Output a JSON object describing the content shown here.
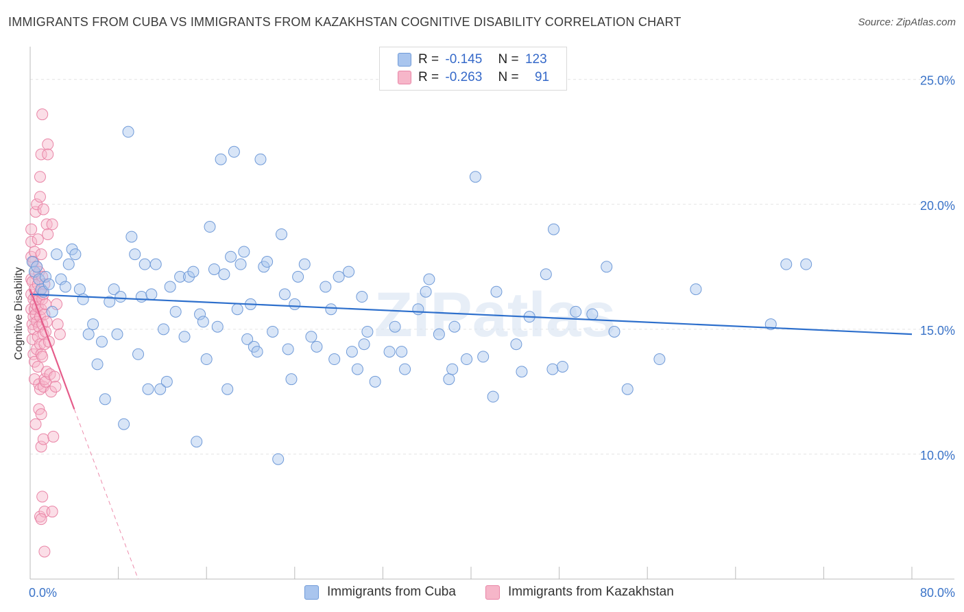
{
  "title": "IMMIGRANTS FROM CUBA VS IMMIGRANTS FROM KAZAKHSTAN COGNITIVE DISABILITY CORRELATION CHART",
  "source": "Source: ZipAtlas.com",
  "watermark": "ZIPatlas",
  "colors": {
    "cuba_fill": "#a9c5ee",
    "cuba_stroke": "#6f9ad8",
    "cuba_line": "#2d6fcc",
    "kaz_fill": "#f6b6c9",
    "kaz_stroke": "#e984a6",
    "kaz_line": "#e55c8a",
    "axis_text": "#3a73c8",
    "grid": "#e3e3e3"
  },
  "legend_top": {
    "rows": [
      {
        "r_label": "R =",
        "r_value": "-0.145",
        "n_label": "N =",
        "n_value": "123"
      },
      {
        "r_label": "R =",
        "r_value": "-0.263",
        "n_label": "N =",
        "n_value": "91"
      }
    ]
  },
  "legend_bottom": {
    "cuba": "Immigrants from Cuba",
    "kazakhstan": "Immigrants from Kazakhstan"
  },
  "chart_data": {
    "type": "scatter",
    "title": "IMMIGRANTS FROM CUBA VS IMMIGRANTS FROM KAZAKHSTAN COGNITIVE DISABILITY CORRELATION CHART",
    "xlabel": "",
    "ylabel": "Cognitive Disability",
    "xlim": [
      0,
      80
    ],
    "ylim": [
      5.0,
      26.2
    ],
    "x_tick_labels": [
      "0.0%",
      "80.0%"
    ],
    "y_ticks": [
      10,
      15,
      20,
      25
    ],
    "y_tick_labels": [
      "10.0%",
      "15.0%",
      "20.0%",
      "25.0%"
    ],
    "grid": true,
    "legend_position": "top-center",
    "series": [
      {
        "name": "Immigrants from Cuba",
        "r": -0.145,
        "n": 123,
        "trend": {
          "x0": 0,
          "y0": 16.4,
          "x1": 80,
          "y1": 14.8
        },
        "points": [
          [
            0.2,
            17.7
          ],
          [
            0.4,
            17.3
          ],
          [
            0.6,
            17.5
          ],
          [
            0.8,
            17.0
          ],
          [
            1.0,
            16.6
          ],
          [
            1.2,
            16.5
          ],
          [
            1.4,
            17.1
          ],
          [
            1.7,
            16.8
          ],
          [
            2.0,
            15.7
          ],
          [
            2.4,
            18.0
          ],
          [
            2.8,
            17.0
          ],
          [
            3.2,
            16.7
          ],
          [
            3.5,
            17.6
          ],
          [
            3.8,
            18.2
          ],
          [
            4.1,
            18.0
          ],
          [
            4.5,
            16.6
          ],
          [
            4.8,
            16.2
          ],
          [
            5.3,
            14.8
          ],
          [
            5.7,
            15.2
          ],
          [
            6.1,
            13.6
          ],
          [
            6.5,
            14.5
          ],
          [
            6.8,
            12.2
          ],
          [
            7.2,
            16.1
          ],
          [
            7.6,
            16.6
          ],
          [
            7.9,
            14.8
          ],
          [
            8.2,
            16.3
          ],
          [
            8.5,
            11.2
          ],
          [
            8.9,
            22.9
          ],
          [
            9.2,
            18.7
          ],
          [
            9.5,
            18.0
          ],
          [
            9.8,
            14.0
          ],
          [
            10.1,
            16.3
          ],
          [
            10.4,
            17.6
          ],
          [
            10.7,
            12.6
          ],
          [
            11.0,
            16.4
          ],
          [
            11.4,
            17.6
          ],
          [
            11.8,
            12.6
          ],
          [
            12.1,
            15.0
          ],
          [
            12.4,
            12.9
          ],
          [
            12.7,
            16.7
          ],
          [
            13.2,
            15.7
          ],
          [
            13.6,
            17.1
          ],
          [
            14.0,
            14.7
          ],
          [
            14.4,
            17.1
          ],
          [
            14.8,
            17.3
          ],
          [
            15.1,
            10.5
          ],
          [
            15.4,
            15.6
          ],
          [
            15.7,
            15.3
          ],
          [
            16.0,
            13.8
          ],
          [
            16.3,
            19.1
          ],
          [
            16.7,
            17.4
          ],
          [
            17.0,
            15.1
          ],
          [
            17.3,
            21.8
          ],
          [
            17.6,
            17.2
          ],
          [
            17.9,
            12.6
          ],
          [
            18.2,
            17.9
          ],
          [
            18.5,
            22.1
          ],
          [
            18.8,
            15.8
          ],
          [
            19.1,
            17.6
          ],
          [
            19.4,
            18.1
          ],
          [
            19.7,
            14.6
          ],
          [
            20.0,
            16.0
          ],
          [
            20.3,
            14.3
          ],
          [
            20.6,
            14.1
          ],
          [
            20.9,
            21.8
          ],
          [
            21.2,
            17.5
          ],
          [
            21.5,
            17.7
          ],
          [
            22.0,
            14.9
          ],
          [
            22.5,
            9.8
          ],
          [
            22.8,
            18.8
          ],
          [
            23.1,
            16.4
          ],
          [
            23.4,
            14.2
          ],
          [
            23.7,
            13.0
          ],
          [
            24.0,
            16.0
          ],
          [
            24.3,
            17.1
          ],
          [
            24.9,
            17.6
          ],
          [
            25.5,
            14.7
          ],
          [
            26.0,
            14.3
          ],
          [
            26.8,
            16.7
          ],
          [
            27.3,
            15.8
          ],
          [
            27.6,
            13.8
          ],
          [
            28.0,
            17.1
          ],
          [
            28.9,
            17.3
          ],
          [
            29.2,
            14.1
          ],
          [
            29.7,
            13.4
          ],
          [
            30.1,
            16.3
          ],
          [
            30.3,
            14.4
          ],
          [
            30.6,
            14.9
          ],
          [
            31.3,
            12.9
          ],
          [
            32.6,
            14.1
          ],
          [
            33.1,
            15.1
          ],
          [
            33.7,
            14.1
          ],
          [
            34.0,
            13.4
          ],
          [
            35.2,
            15.8
          ],
          [
            35.9,
            16.5
          ],
          [
            36.2,
            17.0
          ],
          [
            37.1,
            14.8
          ],
          [
            38.0,
            13.0
          ],
          [
            38.3,
            13.4
          ],
          [
            38.5,
            15.1
          ],
          [
            39.6,
            13.8
          ],
          [
            40.4,
            21.1
          ],
          [
            41.1,
            13.9
          ],
          [
            42.0,
            12.3
          ],
          [
            42.3,
            16.5
          ],
          [
            44.1,
            14.4
          ],
          [
            44.6,
            13.3
          ],
          [
            45.3,
            15.5
          ],
          [
            46.8,
            17.2
          ],
          [
            47.4,
            13.4
          ],
          [
            47.5,
            19.0
          ],
          [
            48.3,
            13.5
          ],
          [
            49.5,
            15.7
          ],
          [
            51.0,
            15.6
          ],
          [
            52.3,
            17.5
          ],
          [
            53.0,
            14.9
          ],
          [
            54.2,
            12.6
          ],
          [
            57.1,
            13.8
          ],
          [
            60.4,
            16.6
          ],
          [
            67.2,
            15.2
          ],
          [
            68.6,
            17.6
          ],
          [
            70.4,
            17.6
          ]
        ]
      },
      {
        "name": "Immigrants from Kazakhstan",
        "r": -0.263,
        "n": 91,
        "trend": {
          "x0": 0,
          "y0": 16.6,
          "x1": 4.0,
          "y1": 11.8
        },
        "trend_dashed": {
          "x0": 4.0,
          "y0": 11.8,
          "x1": 9.8,
          "y1": 5.0
        },
        "points": [
          [
            0.1,
            19.0
          ],
          [
            0.1,
            18.5
          ],
          [
            0.1,
            17.9
          ],
          [
            0.1,
            17.0
          ],
          [
            0.1,
            16.4
          ],
          [
            0.1,
            15.8
          ],
          [
            0.2,
            16.9
          ],
          [
            0.2,
            15.2
          ],
          [
            0.2,
            14.6
          ],
          [
            0.3,
            17.7
          ],
          [
            0.3,
            16.2
          ],
          [
            0.3,
            15.5
          ],
          [
            0.3,
            15.0
          ],
          [
            0.3,
            14.0
          ],
          [
            0.4,
            18.1
          ],
          [
            0.4,
            16.6
          ],
          [
            0.4,
            15.8
          ],
          [
            0.4,
            13.7
          ],
          [
            0.4,
            13.0
          ],
          [
            0.5,
            19.7
          ],
          [
            0.5,
            17.2
          ],
          [
            0.5,
            16.0
          ],
          [
            0.5,
            15.6
          ],
          [
            0.5,
            11.2
          ],
          [
            0.6,
            20.0
          ],
          [
            0.6,
            17.5
          ],
          [
            0.6,
            16.3
          ],
          [
            0.6,
            15.3
          ],
          [
            0.6,
            14.2
          ],
          [
            0.7,
            18.6
          ],
          [
            0.7,
            16.8
          ],
          [
            0.7,
            15.9
          ],
          [
            0.7,
            14.7
          ],
          [
            0.7,
            13.5
          ],
          [
            0.8,
            17.3
          ],
          [
            0.8,
            16.2
          ],
          [
            0.8,
            15.1
          ],
          [
            0.8,
            12.8
          ],
          [
            0.8,
            11.8
          ],
          [
            0.9,
            21.1
          ],
          [
            0.9,
            20.3
          ],
          [
            0.9,
            16.5
          ],
          [
            0.9,
            15.5
          ],
          [
            0.9,
            14.4
          ],
          [
            0.9,
            12.6
          ],
          [
            1.0,
            18.0
          ],
          [
            1.0,
            16.6
          ],
          [
            1.0,
            15.8
          ],
          [
            1.0,
            14.0
          ],
          [
            1.0,
            11.6
          ],
          [
            1.0,
            10.3
          ],
          [
            1.1,
            23.6
          ],
          [
            1.1,
            17.1
          ],
          [
            1.1,
            16.2
          ],
          [
            1.1,
            15.2
          ],
          [
            1.1,
            13.9
          ],
          [
            1.2,
            19.8
          ],
          [
            1.2,
            16.4
          ],
          [
            1.2,
            14.8
          ],
          [
            1.2,
            12.7
          ],
          [
            1.2,
            10.6
          ],
          [
            1.3,
            16.8
          ],
          [
            1.3,
            15.6
          ],
          [
            1.3,
            14.4
          ],
          [
            1.3,
            13.0
          ],
          [
            1.4,
            16.0
          ],
          [
            1.4,
            14.9
          ],
          [
            1.4,
            12.9
          ],
          [
            1.5,
            19.2
          ],
          [
            1.5,
            15.3
          ],
          [
            1.5,
            13.3
          ],
          [
            1.6,
            18.8
          ],
          [
            1.6,
            22.4
          ],
          [
            1.7,
            14.5
          ],
          [
            1.8,
            13.2
          ],
          [
            1.9,
            12.5
          ],
          [
            2.0,
            19.2
          ],
          [
            2.1,
            10.7
          ],
          [
            2.2,
            13.1
          ],
          [
            2.3,
            12.7
          ],
          [
            2.4,
            16.0
          ],
          [
            2.5,
            15.2
          ],
          [
            2.7,
            14.8
          ],
          [
            1.0,
            22.0
          ],
          [
            1.6,
            22.0
          ],
          [
            0.9,
            7.5
          ],
          [
            1.1,
            8.3
          ],
          [
            1.3,
            7.7
          ],
          [
            2.0,
            7.7
          ],
          [
            1.3,
            6.1
          ],
          [
            1.0,
            7.4
          ]
        ]
      }
    ]
  }
}
